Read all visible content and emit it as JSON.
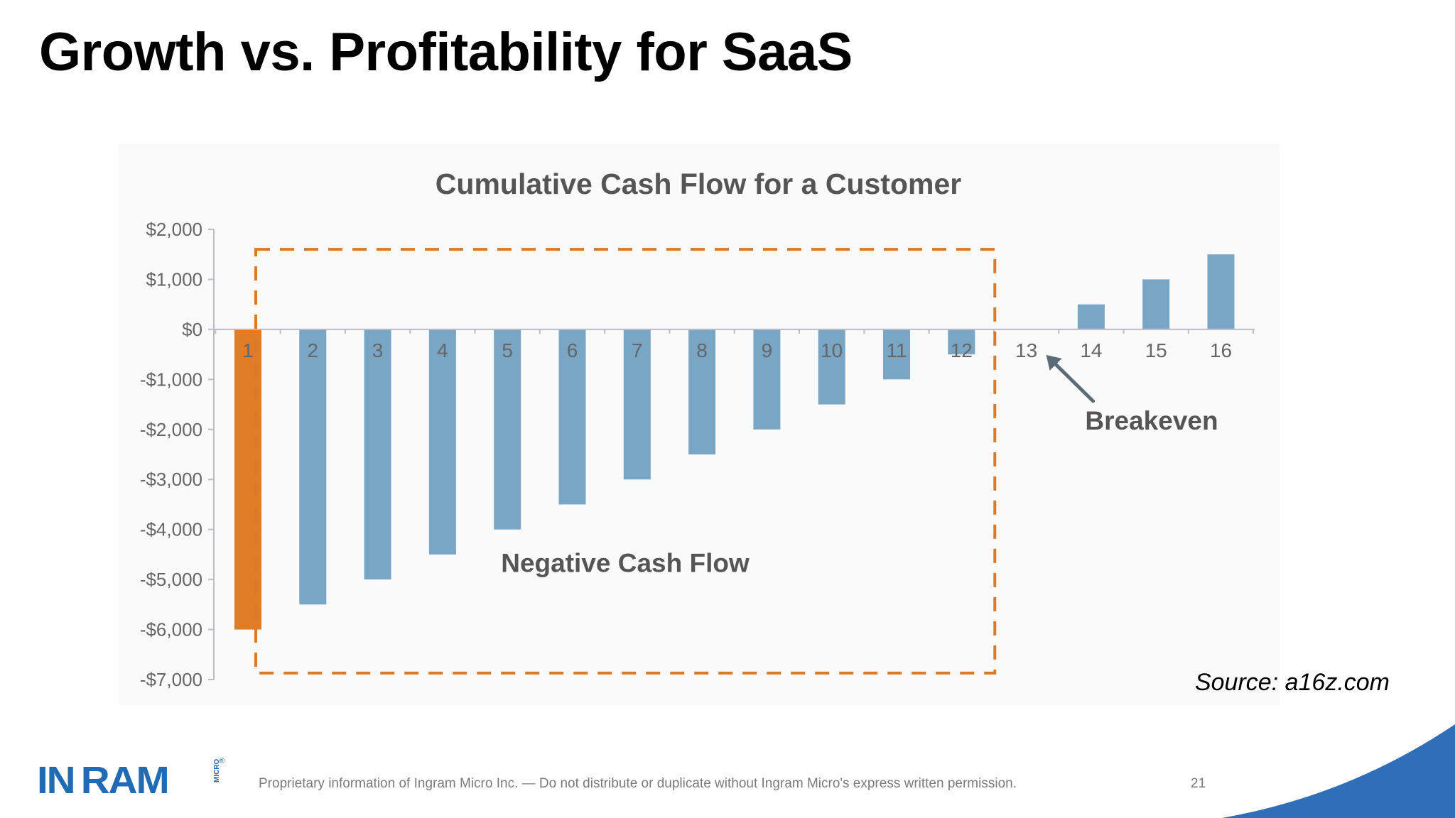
{
  "slide": {
    "title": "Growth vs. Profitability for SaaS",
    "source": "Source: a16z.com",
    "footer": "Proprietary information of Ingram Micro Inc. — Do not distribute or duplicate without Ingram Micro's express written permission.",
    "page_number": "21",
    "logo": {
      "word": "IN RAM",
      "sub": "MICRO",
      "reg": "®"
    }
  },
  "chart_data": {
    "type": "bar",
    "title": "Cumulative Cash Flow for a Customer",
    "xlabel": "",
    "ylabel": "",
    "categories": [
      "1",
      "2",
      "3",
      "4",
      "5",
      "6",
      "7",
      "8",
      "9",
      "10",
      "11",
      "12",
      "13",
      "14",
      "15",
      "16"
    ],
    "values": [
      -6000,
      -5500,
      -5000,
      -4500,
      -4000,
      -3500,
      -3000,
      -2500,
      -2000,
      -1500,
      -1000,
      -500,
      0,
      500,
      1000,
      1500
    ],
    "bar_colors": [
      "#e07b26",
      "#7aa6c6",
      "#7aa6c6",
      "#7aa6c6",
      "#7aa6c6",
      "#7aa6c6",
      "#7aa6c6",
      "#7aa6c6",
      "#7aa6c6",
      "#7aa6c6",
      "#7aa6c6",
      "#7aa6c6",
      "#7aa6c6",
      "#7aa6c6",
      "#7aa6c6",
      "#7aa6c6"
    ],
    "ylim": [
      -7000,
      2000
    ],
    "yticks": [
      2000,
      1000,
      0,
      -1000,
      -2000,
      -3000,
      -4000,
      -5000,
      -6000,
      -7000
    ],
    "ytick_labels": [
      "$2,000",
      "$1,000",
      "$0",
      "-$1,000",
      "-$2,000",
      "-$3,000",
      "-$4,000",
      "-$5,000",
      "-$6,000",
      "-$7,000"
    ],
    "grid": false,
    "annotations": {
      "negative_region_label": "Negative Cash Flow",
      "negative_region_periods": [
        1,
        12
      ],
      "breakeven_label": "Breakeven",
      "breakeven_period": 13
    },
    "colors": {
      "highlight": "#e07b26",
      "bar": "#7aa6c6",
      "axis": "#b8bec4",
      "dashed_box": "#d97a2a",
      "arrow": "#5b6b78"
    }
  }
}
